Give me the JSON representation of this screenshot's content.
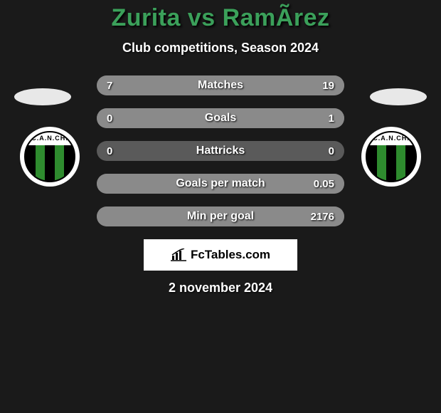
{
  "title": {
    "text": "Zurita vs RamÃ­rez",
    "color": "#3ba05a",
    "fontsize": 34
  },
  "subtitle": {
    "text": "Club competitions, Season 2024",
    "fontsize": 18,
    "color": "#ffffff"
  },
  "date": {
    "text": "2 november 2024",
    "fontsize": 18,
    "color": "#ffffff"
  },
  "crest": {
    "arc_text": "C.A.N.CH.",
    "stripe_colors": [
      "#000000",
      "#2e8b2e",
      "#000000",
      "#2e8b2e",
      "#000000"
    ],
    "bg": "#ffffff"
  },
  "stats": {
    "bar_bg": "#5a5a5a",
    "bar_fill": "#8a8a8a",
    "label_fontsize": 16,
    "value_fontsize": 15,
    "rows": [
      {
        "label": "Matches",
        "left": "7",
        "right": "19",
        "fill_left_pct": 27,
        "fill_right_pct": 73
      },
      {
        "label": "Goals",
        "left": "0",
        "right": "1",
        "fill_left_pct": 0,
        "fill_right_pct": 100
      },
      {
        "label": "Hattricks",
        "left": "0",
        "right": "0",
        "fill_left_pct": 0,
        "fill_right_pct": 0
      },
      {
        "label": "Goals per match",
        "left": "",
        "right": "0.05",
        "fill_left_pct": 0,
        "fill_right_pct": 100
      },
      {
        "label": "Min per goal",
        "left": "",
        "right": "2176",
        "fill_left_pct": 0,
        "fill_right_pct": 100
      }
    ]
  },
  "logo": {
    "text": "FcTables.com",
    "bg": "#ffffff",
    "text_color": "#000000",
    "fontsize": 17
  },
  "background_color": "#1a1a1a"
}
